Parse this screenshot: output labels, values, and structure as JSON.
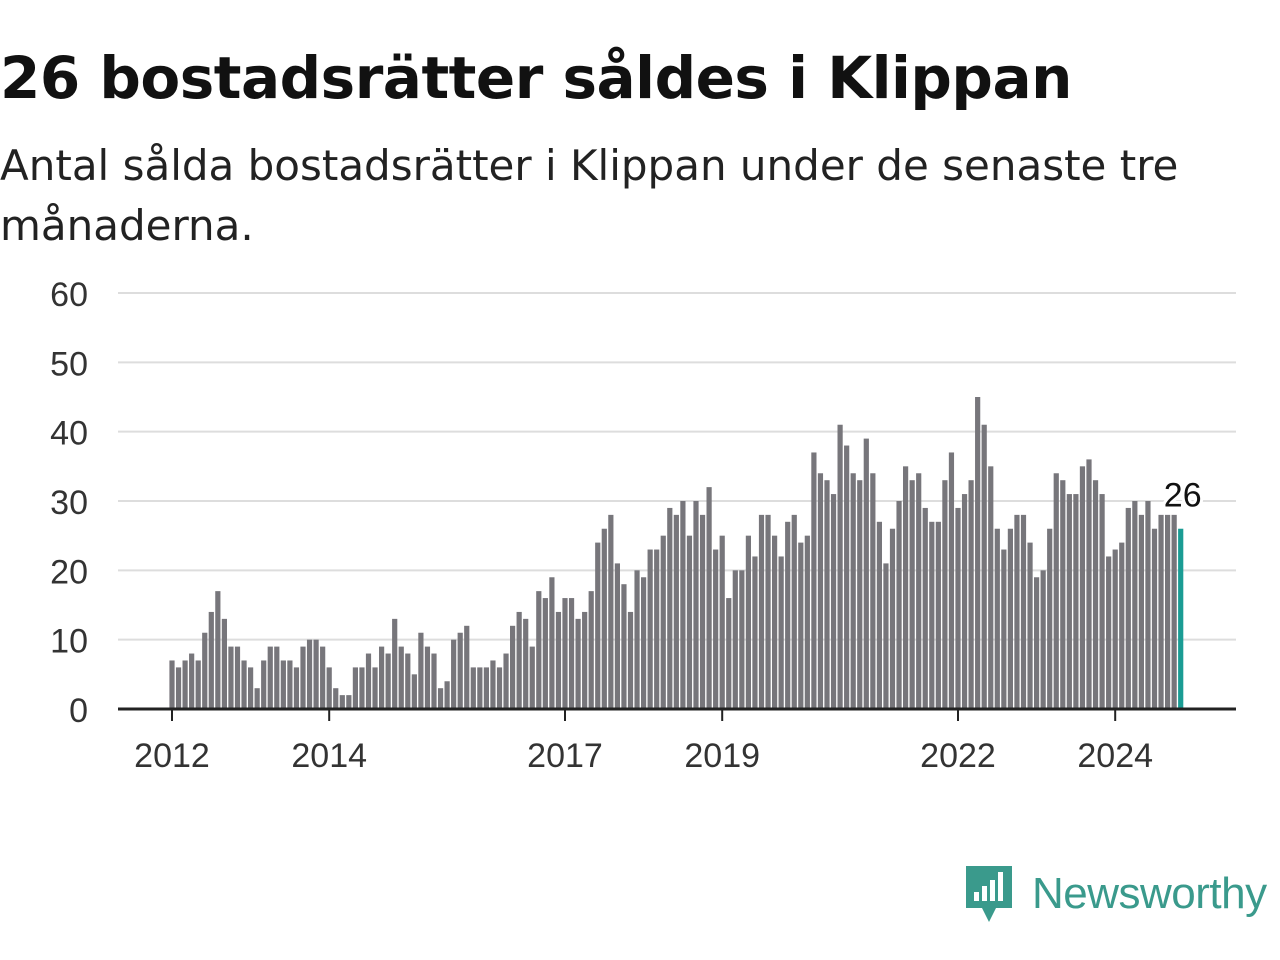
{
  "title": "26 bostadsrätter såldes i Klippan",
  "subtitle": "Antal sålda bostadsrätter i Klippan under de senaste tre månaderna.",
  "brand": {
    "name": "Newsworthy",
    "color": "#3a9a8c",
    "icon": "bar-chart-speech-bubble-icon"
  },
  "colors": {
    "bar": "#77767b",
    "highlight": "#1a9c94",
    "grid": "#dddddd",
    "axis": "#222222"
  },
  "chart_data": {
    "type": "bar",
    "x_start": "2012-01",
    "interval": "month",
    "xticks": [
      "2012",
      "2014",
      "2017",
      "2019",
      "2022",
      "2024"
    ],
    "yticks": [
      0,
      10,
      20,
      30,
      40,
      50,
      60
    ],
    "ylim": [
      0,
      60
    ],
    "grid": true,
    "highlight_last": true,
    "last_label": "26",
    "values": [
      7,
      6,
      7,
      8,
      7,
      11,
      14,
      17,
      13,
      9,
      9,
      7,
      6,
      3,
      7,
      9,
      9,
      7,
      7,
      6,
      9,
      10,
      10,
      9,
      6,
      3,
      2,
      2,
      6,
      6,
      8,
      6,
      9,
      8,
      13,
      9,
      8,
      5,
      11,
      9,
      8,
      3,
      4,
      10,
      11,
      12,
      6,
      6,
      6,
      7,
      6,
      8,
      12,
      14,
      13,
      9,
      17,
      16,
      19,
      14,
      16,
      16,
      13,
      14,
      17,
      24,
      26,
      28,
      21,
      18,
      14,
      20,
      19,
      23,
      23,
      25,
      29,
      28,
      30,
      25,
      30,
      28,
      32,
      23,
      25,
      16,
      20,
      20,
      25,
      22,
      28,
      28,
      25,
      22,
      27,
      28,
      24,
      25,
      37,
      34,
      33,
      31,
      41,
      38,
      34,
      33,
      39,
      34,
      27,
      21,
      26,
      30,
      35,
      33,
      34,
      29,
      27,
      27,
      33,
      37,
      29,
      31,
      33,
      45,
      41,
      35,
      26,
      23,
      26,
      28,
      28,
      24,
      19,
      20,
      26,
      34,
      33,
      31,
      31,
      35,
      36,
      33,
      31,
      22,
      23,
      24,
      29,
      30,
      28,
      30,
      26,
      28,
      28,
      28,
      26
    ]
  }
}
